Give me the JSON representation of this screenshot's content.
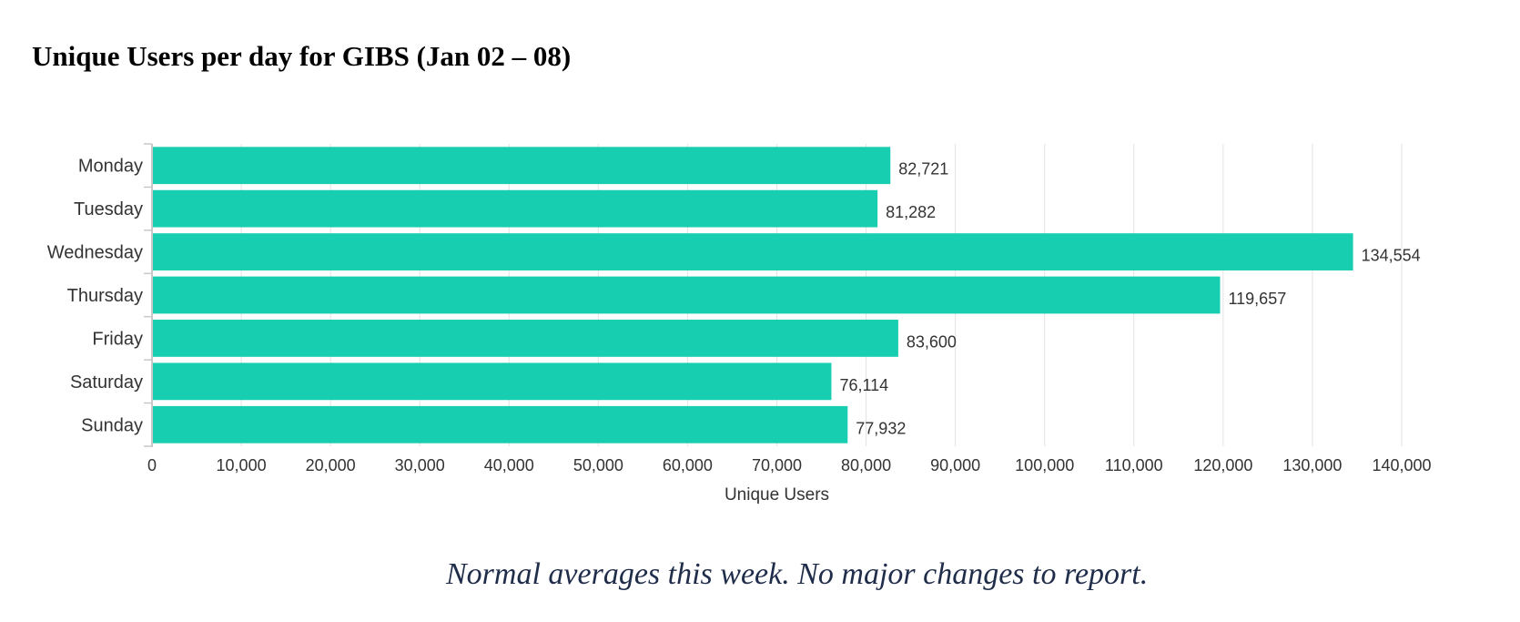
{
  "title": "Unique Users per day for GIBS (Jan 02 – 08)",
  "footnote": "Normal averages this week.  No major changes to report.",
  "colors": {
    "bar": "#17cfb0",
    "grid": "#e3e3e3",
    "axis": "#c8c8c8",
    "text": "#333333"
  },
  "chart_data": {
    "type": "bar",
    "orientation": "horizontal",
    "categories": [
      "Monday",
      "Tuesday",
      "Wednesday",
      "Thursday",
      "Friday",
      "Saturday",
      "Sunday"
    ],
    "values": [
      82721,
      81282,
      134554,
      119657,
      83600,
      76114,
      77932
    ],
    "data_labels": [
      "82,721",
      "81,282",
      "134,554",
      "119,657",
      "83,600",
      "76,114",
      "77,932"
    ],
    "xlabel": "Unique Users",
    "ylabel": "",
    "xlim": [
      0,
      140000
    ],
    "xticks": [
      0,
      10000,
      20000,
      30000,
      40000,
      50000,
      60000,
      70000,
      80000,
      90000,
      100000,
      110000,
      120000,
      130000,
      140000
    ],
    "xtick_labels": [
      "0",
      "10,000",
      "20,000",
      "30,000",
      "40,000",
      "50,000",
      "60,000",
      "70,000",
      "80,000",
      "90,000",
      "100,000",
      "110,000",
      "120,000",
      "130,000",
      "140,000"
    ],
    "grid": true,
    "legend": "none"
  }
}
